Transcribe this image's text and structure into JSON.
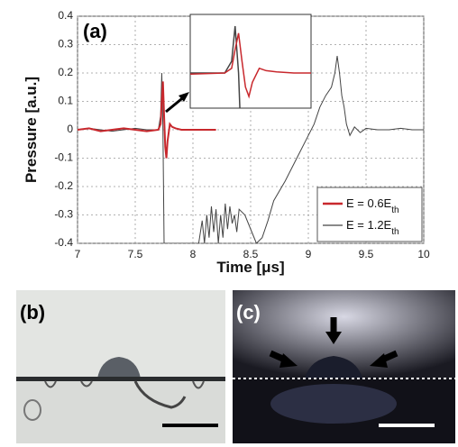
{
  "chart_data": {
    "type": "line",
    "panel_label": "(a)",
    "xlabel": "Time [μs]",
    "ylabel": "Pressure [a.u.]",
    "xlim": [
      7,
      10
    ],
    "xticks": [
      7,
      7.5,
      8,
      8.5,
      9,
      9.5,
      10
    ],
    "ylim": [
      -0.4,
      0.4
    ],
    "yticks": [
      -0.4,
      -0.3,
      -0.2,
      -0.1,
      0,
      0.1,
      0.2,
      0.3,
      0.4
    ],
    "grid": true,
    "legend": "lower right",
    "inset": {
      "xlim": [
        7.6,
        7.95
      ],
      "ylim": [
        -0.15,
        0.25
      ]
    },
    "series": [
      {
        "name": "E = 0.6E",
        "name_sub": "th",
        "color": "#c8282d",
        "x": [
          7.0,
          7.1,
          7.2,
          7.3,
          7.4,
          7.5,
          7.6,
          7.7,
          7.72,
          7.73,
          7.74,
          7.75,
          7.76,
          7.77,
          7.78,
          7.8,
          7.82,
          7.85,
          7.9,
          8.0,
          8.1,
          8.2
        ],
        "values": [
          0,
          0.005,
          -0.005,
          0,
          0.005,
          0,
          -0.005,
          0,
          0.02,
          0.1,
          0.17,
          0.05,
          -0.06,
          -0.1,
          -0.04,
          0.02,
          0.01,
          0.005,
          0,
          0,
          0,
          0
        ]
      },
      {
        "name": "E = 1.2E",
        "name_sub": "th",
        "color": "#444444",
        "x": [
          7.0,
          7.1,
          7.2,
          7.3,
          7.4,
          7.5,
          7.6,
          7.7,
          7.72,
          7.73,
          7.74,
          7.75,
          7.76,
          7.8,
          7.9,
          8.0,
          8.05,
          8.08,
          8.1,
          8.12,
          8.14,
          8.16,
          8.18,
          8.2,
          8.22,
          8.24,
          8.26,
          8.28,
          8.3,
          8.32,
          8.34,
          8.36,
          8.38,
          8.4,
          8.45,
          8.5,
          8.55,
          8.6,
          8.65,
          8.7,
          8.8,
          8.9,
          9.0,
          9.05,
          9.1,
          9.15,
          9.2,
          9.23,
          9.25,
          9.27,
          9.29,
          9.31,
          9.33,
          9.36,
          9.4,
          9.45,
          9.5,
          9.6,
          9.7,
          9.8,
          9.9,
          10.0
        ],
        "values": [
          0,
          0.005,
          0,
          -0.005,
          0,
          0.005,
          0,
          0,
          0.05,
          0.2,
          0,
          -0.4,
          -0.4,
          -0.4,
          -0.4,
          -0.4,
          -0.4,
          -0.32,
          -0.4,
          -0.3,
          -0.38,
          -0.27,
          -0.36,
          -0.28,
          -0.4,
          -0.3,
          -0.38,
          -0.26,
          -0.35,
          -0.27,
          -0.33,
          -0.3,
          -0.36,
          -0.28,
          -0.3,
          -0.35,
          -0.4,
          -0.38,
          -0.32,
          -0.25,
          -0.18,
          -0.1,
          -0.02,
          0.02,
          0.08,
          0.12,
          0.15,
          0.2,
          0.26,
          0.2,
          0.12,
          0.08,
          0.02,
          -0.02,
          0.01,
          -0.01,
          0.005,
          0,
          0,
          0.005,
          0,
          0
        ]
      }
    ]
  },
  "photos": [
    {
      "label": "(b)"
    },
    {
      "label": "(c)"
    }
  ]
}
